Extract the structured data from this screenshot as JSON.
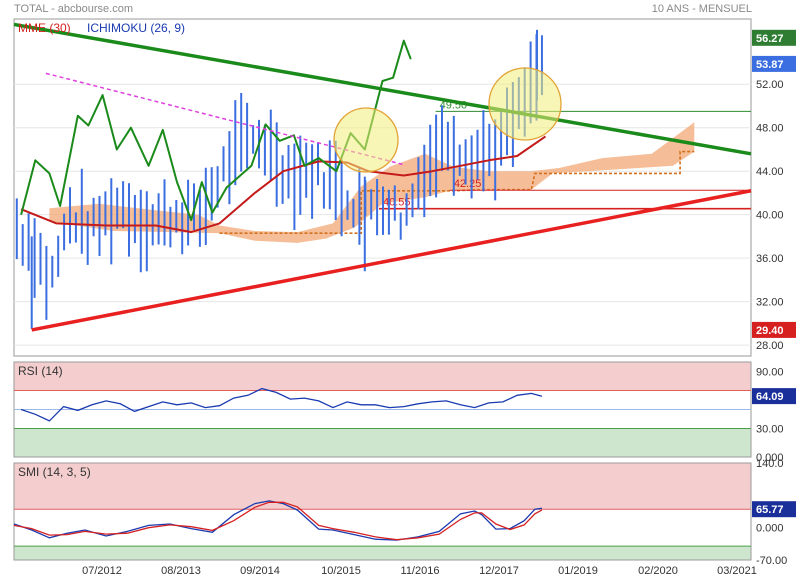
{
  "header": {
    "left": "TOTAL - abcbourse.com",
    "right": "10 ANS - MENSUEL"
  },
  "x_axis": {
    "labels": [
      "07/2012",
      "08/2013",
      "09/2014",
      "10/2015",
      "11/2016",
      "12/2017",
      "01/2019",
      "02/2020",
      "03/2021"
    ]
  },
  "chart_data": [
    {
      "type": "candlestick",
      "title": "",
      "legend": [
        "MME (30)",
        "ICHIMOKU (26, 9)"
      ],
      "y_ticks": [
        28,
        32,
        36,
        40,
        44,
        48,
        52
      ],
      "ylim": [
        27,
        58
      ],
      "price_tags": [
        {
          "value": 56.27,
          "label": "56.27",
          "color": "#2e7d32"
        },
        {
          "value": 53.87,
          "label": "53.87",
          "color": "#3b6ee0"
        },
        {
          "value": 29.4,
          "label": "29.40",
          "color": "#d62020"
        }
      ],
      "levels": [
        {
          "value": 49.5,
          "label": "49.50",
          "color": "#2e8b2e"
        },
        {
          "value": 42.25,
          "label": "42.25",
          "color": "#d62020"
        },
        {
          "value": 40.55,
          "label": "40.55",
          "color": "#d62020"
        }
      ],
      "series": [
        {
          "name": "MME (30)",
          "color": "#c41a1a",
          "values": [
            [
              2011.1,
              40.5
            ],
            [
              2011.6,
              39.2
            ],
            [
              2012.3,
              39.0
            ],
            [
              2013.0,
              39.0
            ],
            [
              2013.5,
              38.4
            ],
            [
              2013.9,
              39.2
            ],
            [
              2014.4,
              42.0
            ],
            [
              2014.8,
              44.0
            ],
            [
              2015.3,
              44.9
            ],
            [
              2015.7,
              44.8
            ],
            [
              2016.0,
              44.0
            ],
            [
              2016.5,
              43.6
            ],
            [
              2016.9,
              44.0
            ],
            [
              2017.3,
              44.5
            ],
            [
              2017.7,
              45.0
            ],
            [
              2018.1,
              45.4
            ],
            [
              2018.5,
              47.2
            ]
          ]
        },
        {
          "name": "Chikou",
          "color": "#1a8a1a",
          "values": [
            [
              2011.1,
              40.0
            ],
            [
              2011.3,
              45.0
            ],
            [
              2011.5,
              43.8
            ],
            [
              2011.65,
              40.8
            ],
            [
              2011.9,
              49.1
            ],
            [
              2012.05,
              48.2
            ],
            [
              2012.25,
              51.0
            ],
            [
              2012.45,
              46.0
            ],
            [
              2012.65,
              48.0
            ],
            [
              2012.9,
              44.5
            ],
            [
              2013.1,
              47.8
            ],
            [
              2013.3,
              43.0
            ],
            [
              2013.5,
              39.5
            ],
            [
              2013.65,
              43.0
            ],
            [
              2013.8,
              40.2
            ],
            [
              2014.0,
              42.5
            ],
            [
              2014.35,
              44.5
            ],
            [
              2014.55,
              48.3
            ],
            [
              2014.75,
              46.8
            ],
            [
              2014.95,
              47.3
            ],
            [
              2015.1,
              44.5
            ],
            [
              2015.3,
              45.2
            ],
            [
              2015.55,
              44.0
            ],
            [
              2015.75,
              47.5
            ],
            [
              2015.95,
              46.0
            ],
            [
              2016.2,
              52.3
            ],
            [
              2016.35,
              52.6
            ],
            [
              2016.5,
              56.0
            ],
            [
              2016.6,
              54.3
            ]
          ]
        }
      ],
      "ichimoku_cloud_baseline": 38.3,
      "trendlines": [
        {
          "name": "resistance",
          "color": "#1a8a1a",
          "from": [
            2011.0,
            57.5
          ],
          "to": [
            2021.4,
            45.6
          ]
        },
        {
          "name": "support",
          "color": "#e82020",
          "from": [
            2011.25,
            29.4
          ],
          "to": [
            2021.4,
            42.2
          ]
        },
        {
          "name": "dashed",
          "color": "#e040e0",
          "from": [
            2011.45,
            53.0
          ],
          "to": [
            2016.5,
            44.6
          ]
        }
      ]
    },
    {
      "type": "line",
      "title": "RSI (14)",
      "y_ticks_labels": [
        "90.00",
        "60.00",
        "30.00",
        "0.000"
      ],
      "ylim": [
        0,
        100
      ],
      "bands": [
        70,
        30
      ],
      "midline": 50,
      "price_tag": {
        "label": "64.09"
      },
      "values": [
        [
          2011.1,
          50
        ],
        [
          2011.3,
          45
        ],
        [
          2011.5,
          38
        ],
        [
          2011.7,
          53
        ],
        [
          2011.9,
          49
        ],
        [
          2012.1,
          55
        ],
        [
          2012.3,
          59
        ],
        [
          2012.5,
          56
        ],
        [
          2012.7,
          48
        ],
        [
          2012.9,
          53
        ],
        [
          2013.1,
          58
        ],
        [
          2013.3,
          55
        ],
        [
          2013.5,
          57
        ],
        [
          2013.7,
          52
        ],
        [
          2013.9,
          54
        ],
        [
          2014.1,
          62
        ],
        [
          2014.3,
          65
        ],
        [
          2014.5,
          72
        ],
        [
          2014.7,
          68
        ],
        [
          2014.9,
          61
        ],
        [
          2015.1,
          62
        ],
        [
          2015.3,
          59
        ],
        [
          2015.5,
          52
        ],
        [
          2015.7,
          58
        ],
        [
          2015.9,
          55
        ],
        [
          2016.1,
          55
        ],
        [
          2016.3,
          52
        ],
        [
          2016.5,
          53
        ],
        [
          2016.7,
          56
        ],
        [
          2016.9,
          58
        ],
        [
          2017.1,
          59
        ],
        [
          2017.3,
          55
        ],
        [
          2017.5,
          52
        ],
        [
          2017.7,
          57
        ],
        [
          2017.9,
          58
        ],
        [
          2018.1,
          65
        ],
        [
          2018.3,
          67
        ],
        [
          2018.45,
          64
        ]
      ]
    },
    {
      "type": "line",
      "title": "SMI (14, 3, 5)",
      "y_ticks_labels": [
        "140.0",
        "0.000",
        "-70.00"
      ],
      "ylim": [
        -70,
        140
      ],
      "bands": [
        40,
        -40
      ],
      "price_tag": {
        "label": "65.77"
      },
      "series": [
        {
          "name": "SMI",
          "color": "#1a3ab0",
          "values": [
            [
              2011.0,
              8
            ],
            [
              2011.25,
              -5
            ],
            [
              2011.5,
              -22
            ],
            [
              2011.75,
              -12
            ],
            [
              2012.0,
              -5
            ],
            [
              2012.3,
              -18
            ],
            [
              2012.6,
              -8
            ],
            [
              2012.9,
              5
            ],
            [
              2013.2,
              8
            ],
            [
              2013.5,
              -2
            ],
            [
              2013.8,
              -10
            ],
            [
              2014.1,
              28
            ],
            [
              2014.4,
              52
            ],
            [
              2014.6,
              58
            ],
            [
              2014.8,
              52
            ],
            [
              2015.0,
              38
            ],
            [
              2015.3,
              -3
            ],
            [
              2015.5,
              -5
            ],
            [
              2015.8,
              -15
            ],
            [
              2016.1,
              -25
            ],
            [
              2016.4,
              -27
            ],
            [
              2016.7,
              -20
            ],
            [
              2017.0,
              -8
            ],
            [
              2017.3,
              30
            ],
            [
              2017.5,
              36
            ],
            [
              2017.6,
              28
            ],
            [
              2017.8,
              -3
            ],
            [
              2018.0,
              -2
            ],
            [
              2018.2,
              15
            ],
            [
              2018.35,
              40
            ],
            [
              2018.45,
              42
            ]
          ]
        },
        {
          "name": "Signal",
          "color": "#d62020",
          "values": [
            [
              2011.0,
              5
            ],
            [
              2011.25,
              -2
            ],
            [
              2011.5,
              -16
            ],
            [
              2011.75,
              -15
            ],
            [
              2012.0,
              -8
            ],
            [
              2012.3,
              -14
            ],
            [
              2012.6,
              -12
            ],
            [
              2012.9,
              0
            ],
            [
              2013.2,
              6
            ],
            [
              2013.5,
              2
            ],
            [
              2013.8,
              -6
            ],
            [
              2014.1,
              15
            ],
            [
              2014.4,
              44
            ],
            [
              2014.6,
              55
            ],
            [
              2014.8,
              55
            ],
            [
              2015.0,
              45
            ],
            [
              2015.3,
              5
            ],
            [
              2015.5,
              -2
            ],
            [
              2015.8,
              -10
            ],
            [
              2016.1,
              -20
            ],
            [
              2016.4,
              -26
            ],
            [
              2016.7,
              -22
            ],
            [
              2017.0,
              -14
            ],
            [
              2017.3,
              18
            ],
            [
              2017.5,
              32
            ],
            [
              2017.6,
              32
            ],
            [
              2017.8,
              8
            ],
            [
              2018.0,
              -4
            ],
            [
              2018.2,
              6
            ],
            [
              2018.35,
              30
            ],
            [
              2018.45,
              38
            ]
          ]
        }
      ]
    }
  ]
}
